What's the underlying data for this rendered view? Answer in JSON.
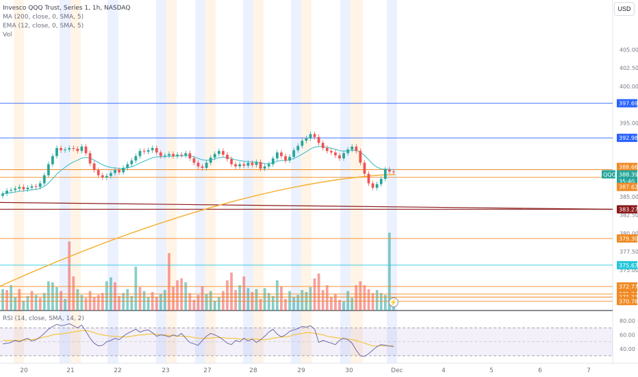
{
  "legend": {
    "title": "Invesco QQQ Trust, Series 1, 1h, NASDAQ",
    "ma": "MA (200, close, 0, SMA, 5)",
    "ema": "EMA (12, close, 0, SMA, 5)",
    "vol": "Vol",
    "rsi": "RSI (14, close, SMA, 14, 2)"
  },
  "currency_button": "USD",
  "bolt_icon": "lightning-icon",
  "colors": {
    "up": "#26a69a",
    "down": "#ef5350",
    "ma": "#f5b031",
    "ema": "#5cc6d0",
    "rsi": "#6f6aa6",
    "rsi_ma": "#f5c842",
    "orange_level": "#f08a24",
    "blue_level": "#2962ff",
    "teal_level": "#26c6da",
    "maroon_level": "#8b1a1a",
    "session_orange": "#fff4e6",
    "session_blue": "#ecf1ff"
  },
  "chart_data": {
    "type": "candlestick",
    "price_axis": {
      "ticks": [
        "405.00",
        "402.50",
        "400.00",
        "395.00",
        "385.00",
        "382.50",
        "380.00",
        "377.50",
        "375.00"
      ],
      "range": [
        369.5,
        409.5
      ]
    },
    "rsi_axis": {
      "ticks": [
        "80.00",
        "60.00",
        "40.00"
      ],
      "range": [
        27,
        88
      ],
      "band": [
        30,
        70
      ]
    },
    "x_labels": [
      "20",
      "21",
      "22",
      "23",
      "27",
      "28",
      "29",
      "30",
      "Dec",
      "4",
      "5",
      "6",
      "7"
    ],
    "horizontal_levels": [
      {
        "label": "397.69",
        "value": 397.69,
        "color": "blue"
      },
      {
        "label": "392.98",
        "value": 392.98,
        "color": "blue"
      },
      {
        "label": "388.66",
        "value": 388.66,
        "color": "orange"
      },
      {
        "label": "387.62",
        "value": 387.62,
        "color": "orange"
      },
      {
        "label": "383.27",
        "value": 383.27,
        "color": "maroon"
      },
      {
        "label": "379.30",
        "value": 379.3,
        "color": "orange"
      },
      {
        "label": "375.67",
        "value": 375.67,
        "color": "teal"
      },
      {
        "label": "372.77",
        "value": 372.77,
        "color": "orange"
      },
      {
        "label": "371.74",
        "value": 371.74,
        "color": "orange"
      },
      {
        "label": "371.33",
        "value": 371.33,
        "color": "orange"
      },
      {
        "label": "370.78",
        "value": 370.78,
        "color": "orange"
      }
    ],
    "last_price": {
      "symbol": "QQQ",
      "price": "388.39",
      "countdown": "35:40"
    },
    "closes": [
      385.4,
      385.8,
      385.9,
      386.1,
      386.3,
      386.0,
      386.2,
      386.4,
      386.3,
      386.8,
      387.9,
      389.4,
      390.5,
      391.6,
      391.3,
      391.4,
      391.6,
      391.5,
      391.2,
      391.8,
      390.9,
      389.5,
      388.6,
      387.9,
      387.6,
      387.8,
      388.2,
      388.6,
      388.3,
      388.9,
      389.4,
      389.9,
      390.5,
      391.2,
      391.1,
      391.3,
      391.6,
      391.0,
      390.5,
      390.6,
      390.8,
      390.5,
      390.7,
      390.6,
      390.9,
      390.2,
      389.6,
      389.1,
      388.9,
      389.6,
      390.3,
      390.8,
      391.2,
      390.7,
      390.1,
      389.4,
      389.1,
      389.4,
      389.2,
      389.6,
      389.3,
      389.7,
      388.8,
      389.1,
      389.4,
      390.2,
      391.0,
      390.5,
      389.9,
      390.4,
      391.3,
      391.9,
      392.6,
      392.9,
      393.5,
      393.1,
      392.3,
      391.6,
      391.2,
      391.0,
      390.6,
      390.2,
      390.9,
      391.4,
      391.8,
      391.2,
      389.6,
      388.1,
      386.8,
      386.2,
      386.7,
      387.4,
      388.7,
      388.4,
      388.39
    ],
    "rsi": [
      47,
      48,
      49,
      52,
      50,
      53,
      55,
      51,
      53,
      57,
      62,
      68,
      72,
      75,
      73,
      74,
      76,
      73,
      70,
      74,
      65,
      55,
      48,
      44,
      45,
      50,
      52,
      55,
      53,
      58,
      62,
      65,
      68,
      64,
      66,
      67,
      63,
      58,
      60,
      59,
      57,
      60,
      58,
      62,
      55,
      49,
      47,
      45,
      52,
      58,
      62,
      60,
      57,
      53,
      48,
      46,
      52,
      50,
      55,
      51,
      54,
      49,
      53,
      58,
      64,
      68,
      61,
      57,
      60,
      65,
      67,
      69,
      72,
      71,
      73,
      68,
      49,
      52,
      50,
      48,
      46,
      52,
      55,
      53,
      48,
      38,
      30,
      29,
      33,
      38,
      43,
      46,
      45,
      44,
      43
    ],
    "rsi_ma": [
      52,
      52,
      52,
      52,
      52,
      52,
      53,
      53,
      54,
      55,
      57,
      58,
      60,
      61,
      61,
      62,
      63,
      64,
      65,
      66,
      66,
      65,
      63,
      61,
      60,
      59,
      58,
      58,
      57,
      57,
      57,
      58,
      59,
      60,
      60,
      61,
      61,
      61,
      60,
      60,
      59,
      59,
      58,
      58,
      58,
      57,
      56,
      55,
      55,
      55,
      55,
      56,
      56,
      56,
      55,
      55,
      55,
      54,
      54,
      54,
      54,
      54,
      53,
      53,
      54,
      55,
      56,
      57,
      57,
      58,
      60,
      61,
      62,
      63,
      63,
      62,
      61,
      60,
      58,
      57,
      56,
      55,
      55,
      54,
      53,
      52,
      50,
      48,
      46,
      44,
      44,
      44,
      44,
      44,
      45
    ],
    "volume": [
      22,
      21,
      26,
      14,
      22,
      10,
      15,
      20,
      16,
      13,
      18,
      30,
      29,
      24,
      20,
      12,
      71,
      35,
      22,
      16,
      13,
      20,
      14,
      16,
      18,
      30,
      34,
      29,
      15,
      18,
      22,
      15,
      45,
      24,
      20,
      14,
      19,
      14,
      17,
      21,
      59,
      25,
      31,
      33,
      29,
      18,
      11,
      16,
      25,
      17,
      20,
      10,
      14,
      20,
      31,
      39,
      21,
      26,
      35,
      23,
      19,
      22,
      12,
      23,
      18,
      15,
      31,
      25,
      12,
      20,
      14,
      16,
      21,
      19,
      24,
      33,
      38,
      21,
      26,
      14,
      17,
      11,
      9,
      20,
      13,
      26,
      30,
      26,
      22,
      18,
      21,
      18,
      16,
      80,
      6
    ],
    "volume_dir": [
      1,
      0,
      1,
      1,
      0,
      1,
      1,
      0,
      1,
      0,
      1,
      1,
      1,
      1,
      0,
      1,
      0,
      0,
      1,
      1,
      0,
      0,
      0,
      0,
      0,
      1,
      1,
      0,
      0,
      1,
      1,
      1,
      1,
      0,
      1,
      1,
      0,
      0,
      1,
      1,
      0,
      0,
      0,
      0,
      1,
      0,
      0,
      0,
      0,
      1,
      1,
      1,
      1,
      0,
      0,
      0,
      0,
      1,
      0,
      1,
      0,
      1,
      0,
      1,
      1,
      1,
      1,
      0,
      0,
      1,
      1,
      1,
      1,
      1,
      1,
      0,
      0,
      0,
      0,
      0,
      0,
      0,
      1,
      1,
      1,
      0,
      0,
      0,
      0,
      0,
      1,
      1,
      1,
      1,
      1
    ]
  }
}
